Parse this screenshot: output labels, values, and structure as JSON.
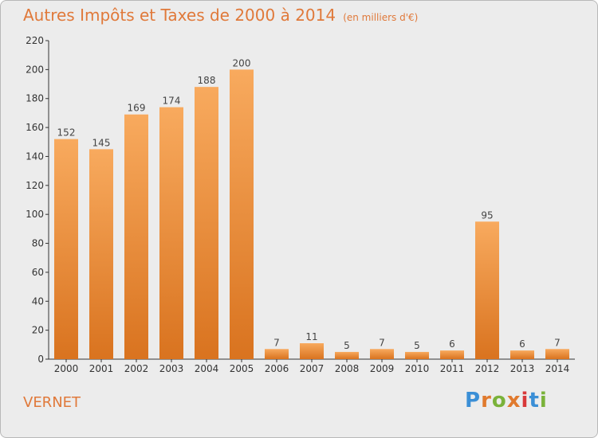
{
  "header": {
    "title": "Autres Impôts et Taxes de 2000 à 2014",
    "unit": "(en milliers d'€)"
  },
  "footer": {
    "commune": "VERNET",
    "logo_text": "Proxiti"
  },
  "colors": {
    "title": "#e0793a",
    "bar_top": "#f8aa5e",
    "bar_bottom": "#d9731f",
    "background": "#ececec",
    "logo": [
      "#3b8fd6",
      "#e07a2e",
      "#7ab23a",
      "#e07a2e",
      "#d8393a",
      "#3b8fd6",
      "#7ab23a"
    ]
  },
  "chart_data": {
    "type": "bar",
    "title": "Autres Impôts et Taxes de 2000 à 2014",
    "subtitle": "(en milliers d'€)",
    "categories": [
      "2000",
      "2001",
      "2002",
      "2003",
      "2004",
      "2005",
      "2006",
      "2007",
      "2008",
      "2009",
      "2010",
      "2011",
      "2012",
      "2013",
      "2014"
    ],
    "values": [
      152,
      145,
      169,
      174,
      188,
      200,
      7,
      11,
      5,
      7,
      5,
      6,
      95,
      6,
      7
    ],
    "ylim": [
      0,
      220
    ],
    "yticks": [
      0,
      20,
      40,
      60,
      80,
      100,
      120,
      140,
      160,
      180,
      200,
      220
    ],
    "grid": false,
    "legend": "none"
  }
}
